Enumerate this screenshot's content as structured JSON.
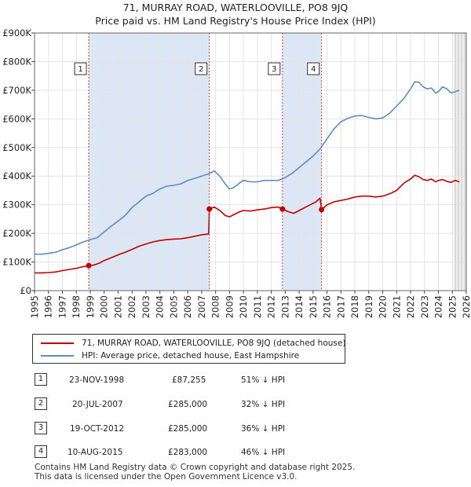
{
  "chart_data": {
    "type": "line",
    "title": "71, MURRAY ROAD, WATERLOOVILLE, PO8 9JQ",
    "subtitle": "Price paid vs. HM Land Registry's House Price Index (HPI)",
    "xlim": [
      1995,
      2026
    ],
    "ylim": [
      0,
      900000
    ],
    "x_ticks": [
      "1995",
      "1996",
      "1997",
      "1998",
      "1999",
      "2000",
      "2001",
      "2002",
      "2003",
      "2004",
      "2005",
      "2006",
      "2007",
      "2008",
      "2009",
      "2010",
      "2011",
      "2012",
      "2013",
      "2014",
      "2015",
      "2016",
      "2017",
      "2018",
      "2019",
      "2020",
      "2021",
      "2022",
      "2023",
      "2024",
      "2025",
      "2026"
    ],
    "y_ticks": [
      {
        "value": 0,
        "label": "£0"
      },
      {
        "value": 100000,
        "label": "£100K"
      },
      {
        "value": 200000,
        "label": "£200K"
      },
      {
        "value": 300000,
        "label": "£300K"
      },
      {
        "value": 400000,
        "label": "£400K"
      },
      {
        "value": 500000,
        "label": "£500K"
      },
      {
        "value": 600000,
        "label": "£600K"
      },
      {
        "value": 700000,
        "label": "£700K"
      },
      {
        "value": 800000,
        "label": "£800K"
      },
      {
        "value": 900000,
        "label": "£900K"
      }
    ],
    "shaded_periods": [
      [
        1998.89,
        2007.55
      ],
      [
        2012.8,
        2015.61
      ]
    ],
    "forecast_start": 2025.1,
    "series": [
      {
        "name": "HPI: Average price, detached house, East Hampshire",
        "color": "#5b8cc4",
        "x": [
          1995,
          1995.5,
          1996,
          1996.5,
          1997,
          1997.5,
          1998,
          1998.5,
          1999,
          1999.5,
          2000,
          2000.5,
          2001,
          2001.5,
          2002,
          2002.5,
          2003,
          2003.5,
          2004,
          2004.5,
          2005,
          2005.5,
          2006,
          2006.5,
          2007,
          2007.5,
          2007.9,
          2008.3,
          2008.7,
          2009,
          2009.3,
          2009.7,
          2010,
          2010.5,
          2011,
          2011.5,
          2012,
          2012.5,
          2013,
          2013.5,
          2014,
          2014.5,
          2015,
          2015.5,
          2016,
          2016.5,
          2017,
          2017.5,
          2018,
          2018.5,
          2019,
          2019.5,
          2020,
          2020.5,
          2021,
          2021.5,
          2022,
          2022.3,
          2022.6,
          2022.9,
          2023.2,
          2023.5,
          2023.8,
          2024,
          2024.3,
          2024.6,
          2024.9,
          2025.2,
          2025.5
        ],
        "values": [
          128000,
          127000,
          130000,
          134000,
          143000,
          150000,
          160000,
          170000,
          178000,
          185000,
          205000,
          225000,
          243000,
          262000,
          290000,
          310000,
          330000,
          340000,
          355000,
          365000,
          368000,
          373000,
          385000,
          392000,
          400000,
          408000,
          418000,
          400000,
          372000,
          355000,
          360000,
          375000,
          385000,
          380000,
          380000,
          385000,
          385000,
          385000,
          395000,
          410000,
          430000,
          450000,
          470000,
          495000,
          530000,
          565000,
          590000,
          602000,
          610000,
          612000,
          605000,
          600000,
          603000,
          620000,
          645000,
          670000,
          705000,
          730000,
          728000,
          712000,
          705000,
          708000,
          690000,
          695000,
          712000,
          705000,
          690000,
          695000,
          700000
        ]
      },
      {
        "name": "71, MURRAY ROAD, WATERLOOVILLE, PO8 9JQ (detached house)",
        "color": "#c00000",
        "x": [
          1995,
          1995.5,
          1996,
          1996.5,
          1997,
          1997.5,
          1998,
          1998.5,
          1998.89,
          1999.3,
          1999.7,
          2000,
          2000.5,
          2001,
          2001.5,
          2002,
          2002.5,
          2003,
          2003.5,
          2004,
          2004.5,
          2005,
          2005.5,
          2006,
          2006.5,
          2007,
          2007.5,
          2007.55,
          2007.9,
          2008.3,
          2008.7,
          2009,
          2009.3,
          2009.7,
          2010,
          2010.5,
          2011,
          2011.5,
          2012,
          2012.5,
          2012.8,
          2013.2,
          2013.6,
          2014,
          2014.4,
          2014.8,
          2015.2,
          2015.5,
          2015.61,
          2016,
          2016.5,
          2017,
          2017.5,
          2018,
          2018.5,
          2019,
          2019.5,
          2020,
          2020.5,
          2021,
          2021.3,
          2021.6,
          2022,
          2022.3,
          2022.6,
          2022.9,
          2023.2,
          2023.5,
          2023.8,
          2024,
          2024.3,
          2024.6,
          2024.9,
          2025.2,
          2025.5
        ],
        "values": [
          62000,
          62000,
          63000,
          65000,
          70000,
          74000,
          78000,
          84000,
          87255,
          90000,
          97000,
          105000,
          115000,
          125000,
          134000,
          144000,
          155000,
          163000,
          170000,
          175000,
          178000,
          180000,
          181000,
          185000,
          190000,
          195000,
          198000,
          285000,
          292000,
          280000,
          262000,
          258000,
          265000,
          275000,
          280000,
          278000,
          282000,
          285000,
          290000,
          292000,
          285000,
          276000,
          270000,
          280000,
          290000,
          300000,
          310000,
          323000,
          283000,
          300000,
          310000,
          315000,
          320000,
          327000,
          330000,
          330000,
          327000,
          330000,
          338000,
          350000,
          365000,
          378000,
          390000,
          403000,
          398000,
          388000,
          385000,
          390000,
          380000,
          385000,
          388000,
          382000,
          378000,
          385000,
          380000
        ]
      }
    ],
    "markers": [
      {
        "label": "1",
        "x": 1998.89,
        "value": 87255
      },
      {
        "label": "2",
        "x": 2007.55,
        "value": 285000
      },
      {
        "label": "3",
        "x": 2012.8,
        "value": 285000
      },
      {
        "label": "4",
        "x": 2015.61,
        "value": 283000
      }
    ]
  },
  "legend": {
    "property_label": "71, MURRAY ROAD, WATERLOOVILLE, PO8 9JQ (detached house)",
    "hpi_label": "HPI: Average price, detached house, East Hampshire"
  },
  "transactions": [
    {
      "num": "1",
      "date": "23-NOV-1998",
      "price": "£87,255",
      "hpi": "51% ↓ HPI"
    },
    {
      "num": "2",
      "date": "20-JUL-2007",
      "price": "£285,000",
      "hpi": "32% ↓ HPI"
    },
    {
      "num": "3",
      "date": "19-OCT-2012",
      "price": "£285,000",
      "hpi": "36% ↓ HPI"
    },
    {
      "num": "4",
      "date": "10-AUG-2015",
      "price": "£283,000",
      "hpi": "46% ↓ HPI"
    }
  ],
  "footer": {
    "line1": "Contains HM Land Registry data © Crown copyright and database right 2025.",
    "line2": "This data is licensed under the Open Government Licence v3.0."
  }
}
